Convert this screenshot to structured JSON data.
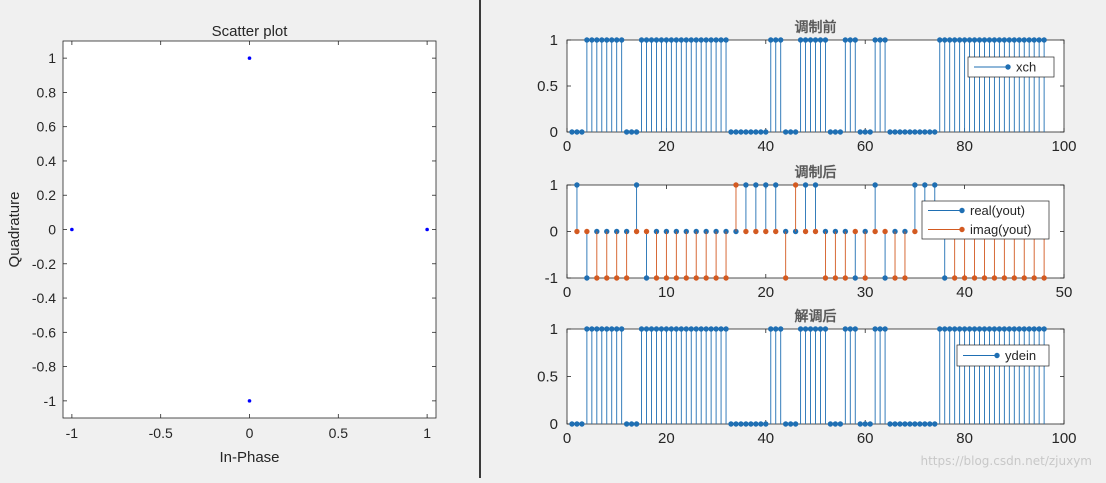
{
  "chart_data": [
    {
      "type": "scatter",
      "title": "Scatter plot",
      "xlabel": "In-Phase",
      "ylabel": "Quadrature",
      "xlim": [
        -1.05,
        1.05
      ],
      "ylim": [
        -1.1,
        1.1
      ],
      "xticks": [
        -1,
        -0.5,
        0,
        0.5,
        1
      ],
      "xticklabels": [
        "-1",
        "-0.5",
        "0",
        "0.5",
        "1"
      ],
      "yticks": [
        1,
        0.8,
        0.6,
        0.4,
        0.2,
        0,
        -0.2,
        -0.4,
        -0.6,
        -0.8,
        -1
      ],
      "yticklabels": [
        "1",
        "0.8",
        "0.6",
        "0.4",
        "0.2",
        "0",
        "-0.2",
        "-0.4",
        "-0.6",
        "-0.8",
        "-1"
      ],
      "grid": false,
      "marker_color": "#0000ff",
      "points": [
        {
          "x": 0,
          "y": 1
        },
        {
          "x": -1,
          "y": 0
        },
        {
          "x": 1,
          "y": 0
        },
        {
          "x": 0,
          "y": -1
        }
      ]
    },
    {
      "type": "stem",
      "title": "调制前",
      "xlabel": "",
      "ylabel": "",
      "xlim": [
        0,
        100
      ],
      "ylim": [
        0,
        1
      ],
      "xticks": [
        0,
        20,
        40,
        60,
        80,
        100
      ],
      "xticklabels": [
        "0",
        "20",
        "40",
        "60",
        "80",
        "100"
      ],
      "yticks": [
        1,
        0.5,
        0
      ],
      "yticklabels": [
        "1",
        "0.5",
        "0"
      ],
      "legend_position": "top-right",
      "series": [
        {
          "name": "xch",
          "color": "#1f6fb3",
          "values": [
            0,
            0,
            0,
            1,
            1,
            1,
            1,
            1,
            1,
            1,
            1,
            0,
            0,
            0,
            1,
            1,
            1,
            1,
            1,
            1,
            1,
            1,
            1,
            1,
            1,
            1,
            1,
            1,
            1,
            1,
            1,
            1,
            0,
            0,
            0,
            0,
            0,
            0,
            0,
            0,
            1,
            1,
            1,
            0,
            0,
            0,
            1,
            1,
            1,
            1,
            1,
            1,
            0,
            0,
            0,
            1,
            1,
            1,
            0,
            0,
            0,
            1,
            1,
            1,
            0,
            0,
            0,
            0,
            0,
            0,
            0,
            0,
            0,
            0,
            1,
            1,
            1,
            1,
            1,
            1,
            1,
            1,
            1,
            1,
            1,
            1,
            1,
            1,
            1,
            1,
            1,
            1,
            1,
            1,
            1,
            1
          ]
        }
      ]
    },
    {
      "type": "stem",
      "title": "调制后",
      "xlabel": "",
      "ylabel": "",
      "xlim": [
        0,
        50
      ],
      "ylim": [
        -1,
        1
      ],
      "xticks": [
        0,
        10,
        20,
        30,
        40,
        50
      ],
      "xticklabels": [
        "0",
        "10",
        "20",
        "30",
        "40",
        "50"
      ],
      "yticks": [
        1,
        0,
        -1
      ],
      "yticklabels": [
        "1",
        "0",
        "-1"
      ],
      "legend_position": "right",
      "series": [
        {
          "name": "real(yout)",
          "color": "#1f6fb3",
          "values": [
            1,
            -1,
            0,
            0,
            0,
            0,
            1,
            -1,
            0,
            0,
            0,
            0,
            0,
            0,
            0,
            0,
            0,
            1,
            1,
            1,
            1,
            0,
            0,
            1,
            1,
            0,
            0,
            0,
            -1,
            0,
            1,
            -1,
            0,
            0,
            1,
            1,
            1,
            -1,
            0,
            0,
            0,
            0,
            0,
            0,
            0,
            0,
            0,
            0
          ]
        },
        {
          "name": "imag(yout)",
          "color": "#d35a21",
          "values": [
            0,
            0,
            -1,
            -1,
            -1,
            -1,
            0,
            0,
            -1,
            -1,
            -1,
            -1,
            -1,
            -1,
            -1,
            -1,
            1,
            0,
            0,
            0,
            0,
            -1,
            1,
            0,
            0,
            -1,
            -1,
            -1,
            0,
            -1,
            0,
            0,
            -1,
            -1,
            0,
            0,
            0,
            0,
            -1,
            -1,
            -1,
            -1,
            -1,
            -1,
            -1,
            -1,
            -1,
            -1
          ]
        }
      ]
    },
    {
      "type": "stem",
      "title": "解调后",
      "xlabel": "",
      "ylabel": "",
      "xlim": [
        0,
        100
      ],
      "ylim": [
        0,
        1
      ],
      "xticks": [
        0,
        20,
        40,
        60,
        80,
        100
      ],
      "xticklabels": [
        "0",
        "20",
        "40",
        "60",
        "80",
        "100"
      ],
      "yticks": [
        1,
        0.5,
        0
      ],
      "yticklabels": [
        "1",
        "0.5",
        "0"
      ],
      "legend_position": "right",
      "series": [
        {
          "name": "ydein",
          "color": "#1f6fb3",
          "values": [
            0,
            0,
            0,
            1,
            1,
            1,
            1,
            1,
            1,
            1,
            1,
            0,
            0,
            0,
            1,
            1,
            1,
            1,
            1,
            1,
            1,
            1,
            1,
            1,
            1,
            1,
            1,
            1,
            1,
            1,
            1,
            1,
            0,
            0,
            0,
            0,
            0,
            0,
            0,
            0,
            1,
            1,
            1,
            0,
            0,
            0,
            1,
            1,
            1,
            1,
            1,
            1,
            0,
            0,
            0,
            1,
            1,
            1,
            0,
            0,
            0,
            1,
            1,
            1,
            0,
            0,
            0,
            0,
            0,
            0,
            0,
            0,
            0,
            0,
            1,
            1,
            1,
            1,
            1,
            1,
            1,
            1,
            1,
            1,
            1,
            1,
            1,
            1,
            1,
            1,
            1,
            1,
            1,
            1,
            1,
            1
          ]
        }
      ]
    }
  ],
  "watermark": "https://blog.csdn.net/zjuxym"
}
